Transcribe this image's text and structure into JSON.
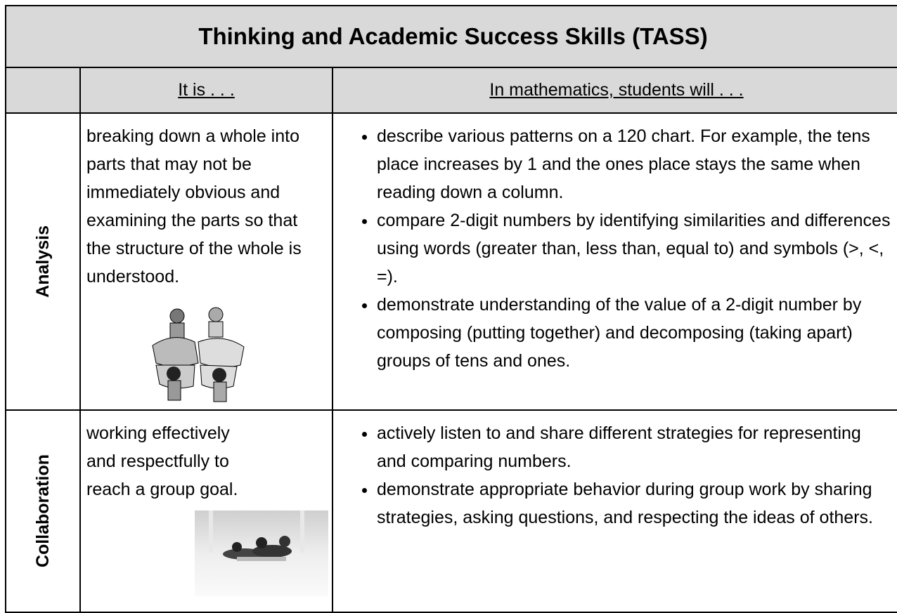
{
  "title": "Thinking and Academic Success Skills (TASS)",
  "table": {
    "columns": [
      "It is . . .",
      "In mathematics, students will . . ."
    ],
    "rows": [
      {
        "skill": "Analysis",
        "definition": "breaking down a whole into parts that may not be immediately obvious and examining the parts so that the structure of the whole is understood.",
        "bullets": [
          "describe various patterns on a 120 chart.   For example, the tens place increases by 1 and the ones place stays the same when reading down a column.",
          "compare 2-digit numbers by identifying similarities and differences using words (greater than, less than, equal to) and symbols (>, <, =).",
          "demonstrate understanding of the value of a 2-digit number by composing (putting together) and decomposing (taking apart) groups of tens and ones."
        ]
      },
      {
        "skill": "Collaboration",
        "definition": "working effectively and respectfully to reach a group goal.",
        "bullets": [
          "actively listen to and share different strategies for representing and comparing numbers.",
          "demonstrate appropriate behavior during group work by sharing strategies, asking questions, and respecting the ideas of others."
        ]
      }
    ]
  }
}
